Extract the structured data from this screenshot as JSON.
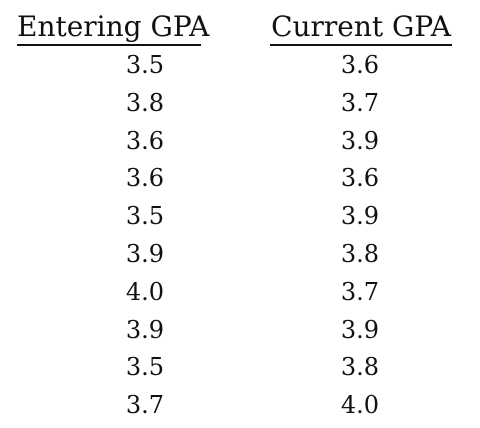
{
  "table": {
    "headers": [
      "Entering GPA",
      "Current GPA"
    ],
    "rows": [
      [
        "3.5",
        "3.6"
      ],
      [
        "3.8",
        "3.7"
      ],
      [
        "3.6",
        "3.9"
      ],
      [
        "3.6",
        "3.6"
      ],
      [
        "3.5",
        "3.9"
      ],
      [
        "3.9",
        "3.8"
      ],
      [
        "4.0",
        "3.7"
      ],
      [
        "3.9",
        "3.9"
      ],
      [
        "3.5",
        "3.8"
      ],
      [
        "3.7",
        "4.0"
      ]
    ]
  }
}
